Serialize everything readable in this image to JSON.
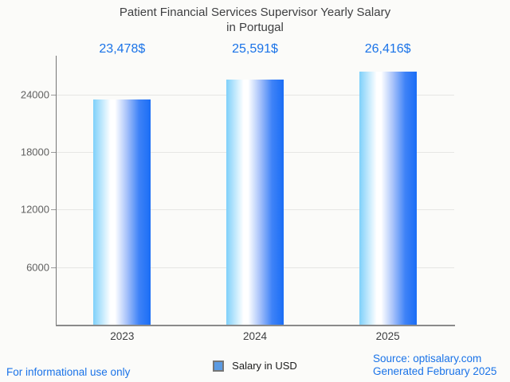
{
  "header": {
    "title_lines": [
      "Patient Financial Services Supervisor Yearly Salary",
      "in Portugal"
    ]
  },
  "chart_data": {
    "type": "bar",
    "title": "Patient Financial Services Supervisor Yearly Salary in Portugal",
    "categories": [
      "2023",
      "2024",
      "2025"
    ],
    "values": [
      23478,
      25591,
      26416
    ],
    "value_labels": [
      "23,478$",
      "25,591$",
      "26,416$"
    ],
    "series_name": "Salary in USD",
    "yticks": [
      6000,
      12000,
      18000,
      24000
    ],
    "ylim": [
      0,
      28055
    ],
    "grid": "horizontal",
    "legend_position": "bottom-center",
    "colors": {
      "value_label": "#1a73e8",
      "bar_gradient_stops": [
        "#7ed0fa 0%",
        "#ffffff 30%",
        "#ffffff 38%",
        "#aac4fa 58%",
        "#3e82f7 80%",
        "#1a6df5 100%"
      ],
      "legend_swatch_fill": "#5b9be3",
      "legend_swatch_border": "#767676",
      "gridline": "#e6e6e4",
      "axis": "#757575",
      "title_text": "#3f4042",
      "tick_text": "#616161",
      "footer_text": "#1a73e8"
    }
  },
  "legend": {
    "label": "Salary in USD"
  },
  "footer": {
    "left_note": "For informational use only",
    "source": "Source: optisalary.com",
    "generated": "Generated February 2025"
  }
}
